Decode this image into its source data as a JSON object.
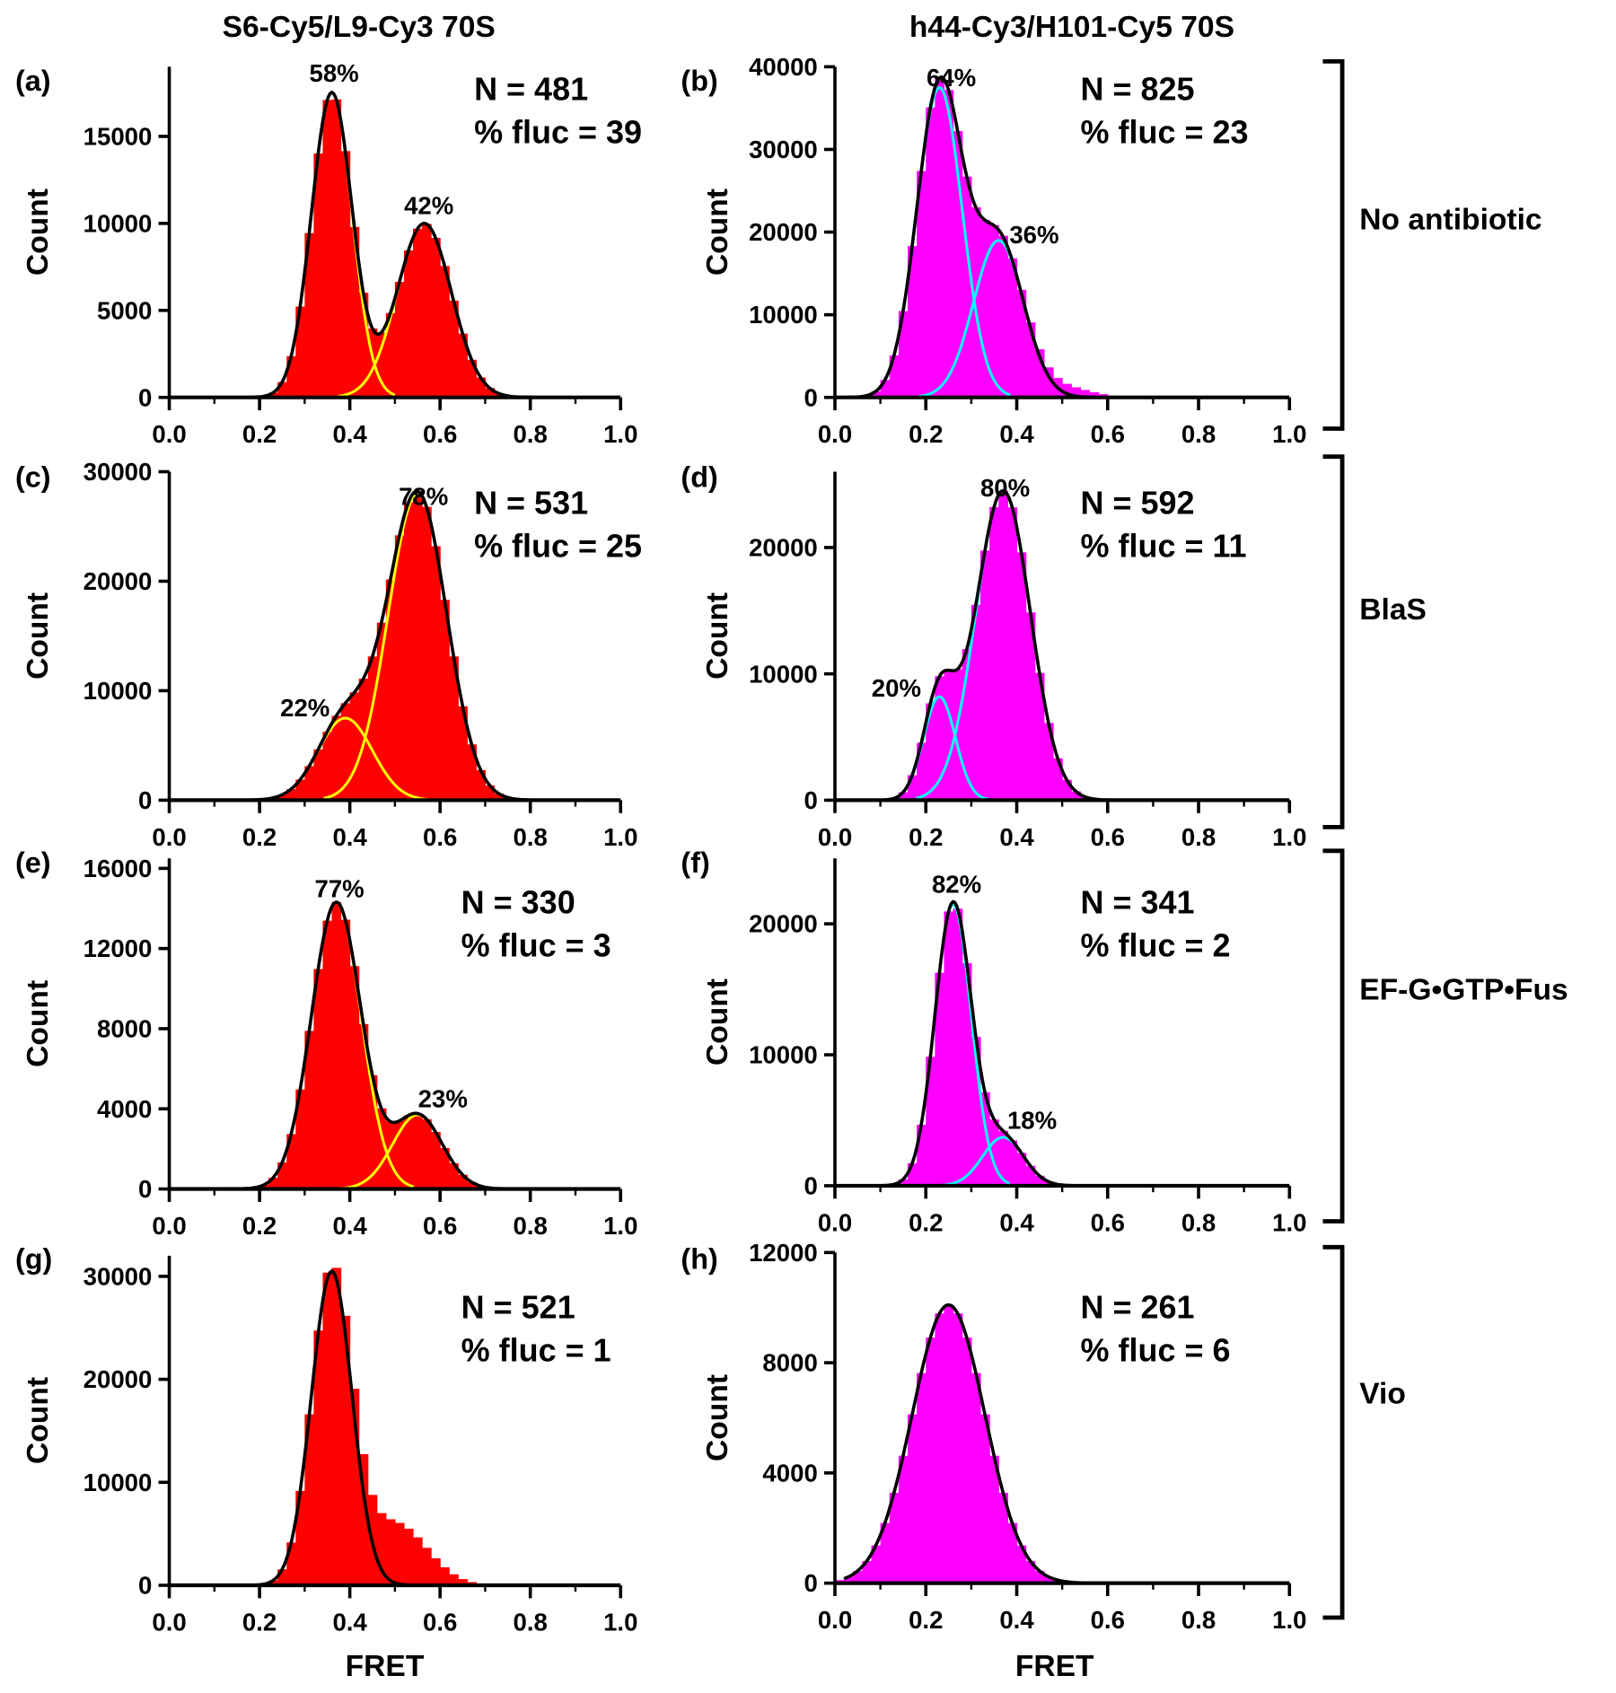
{
  "chart_data": {
    "type": "bar",
    "column_titles": [
      "S6-Cy5/L9-Cy3 70S",
      "h44-Cy3/H101-Cy5 70S"
    ],
    "row_labels": [
      "No antibiotic",
      "BlaS",
      "EF-G•GTP•Fus",
      "Vio"
    ],
    "xlabel": "FRET",
    "ylabel": "Count",
    "xlim": [
      0,
      1
    ],
    "xticks": [
      "0.0",
      "0.2",
      "0.4",
      "0.6",
      "0.8",
      "1.0"
    ],
    "colors": {
      "left_bars": "#ff0000",
      "right_bars": "#ff00ff",
      "left_components": "#ffff00",
      "right_components": "#00ffff",
      "fit": "#000000"
    },
    "panels": [
      {
        "id": "(a)",
        "N": "N = 481",
        "fluc": "% fluc = 39",
        "ylim": [
          0,
          19000
        ],
        "yticks": [
          0,
          5000,
          10000,
          15000
        ],
        "components": [
          {
            "center": 0.36,
            "amplitude": 17500,
            "sigma": 0.045,
            "label": "58%"
          },
          {
            "center": 0.565,
            "amplitude": 10000,
            "sigma": 0.06,
            "label": "42%"
          }
        ],
        "extra_histogram": []
      },
      {
        "id": "(b)",
        "N": "N = 825",
        "fluc": "% fluc = 23",
        "ylim": [
          0,
          40000
        ],
        "yticks": [
          0,
          10000,
          20000,
          30000,
          40000
        ],
        "components": [
          {
            "center": 0.23,
            "amplitude": 37500,
            "sigma": 0.05,
            "label": "64%"
          },
          {
            "center": 0.36,
            "amplitude": 19000,
            "sigma": 0.055,
            "label": "36%"
          }
        ],
        "extra_histogram": [
          {
            "center": 0.5,
            "amplitude": 1200,
            "sigma": 0.06
          }
        ]
      },
      {
        "id": "(c)",
        "N": "N = 531",
        "fluc": "% fluc = 25",
        "ylim": [
          0,
          30000
        ],
        "yticks": [
          0,
          10000,
          20000,
          30000
        ],
        "components": [
          {
            "center": 0.39,
            "amplitude": 7500,
            "sigma": 0.06,
            "label": "22%"
          },
          {
            "center": 0.55,
            "amplitude": 28000,
            "sigma": 0.065,
            "label": "78%"
          }
        ],
        "extra_histogram": []
      },
      {
        "id": "(d)",
        "N": "N = 592",
        "fluc": "% fluc = 11",
        "ylim": [
          0,
          26000
        ],
        "yticks": [
          0,
          10000,
          20000
        ],
        "components": [
          {
            "center": 0.23,
            "amplitude": 8200,
            "sigma": 0.035,
            "label": "20%"
          },
          {
            "center": 0.37,
            "amplitude": 24500,
            "sigma": 0.06,
            "label": "80%"
          }
        ],
        "extra_histogram": []
      },
      {
        "id": "(e)",
        "N": "N = 330",
        "fluc": "% fluc = 3",
        "ylim": [
          0,
          16500
        ],
        "yticks": [
          0,
          4000,
          8000,
          12000,
          16000
        ],
        "components": [
          {
            "center": 0.37,
            "amplitude": 14300,
            "sigma": 0.055,
            "label": "77%"
          },
          {
            "center": 0.55,
            "amplitude": 3700,
            "sigma": 0.055,
            "label": "23%"
          }
        ],
        "extra_histogram": []
      },
      {
        "id": "(f)",
        "N": "N = 341",
        "fluc": "% fluc = 2",
        "ylim": [
          0,
          25000
        ],
        "yticks": [
          0,
          10000,
          20000
        ],
        "components": [
          {
            "center": 0.26,
            "amplitude": 21500,
            "sigma": 0.04,
            "label": "82%"
          },
          {
            "center": 0.37,
            "amplitude": 3700,
            "sigma": 0.045,
            "label": "18%"
          }
        ],
        "extra_histogram": []
      },
      {
        "id": "(g)",
        "N": "N = 521",
        "fluc": "% fluc = 1",
        "ylim": [
          0,
          32000
        ],
        "yticks": [
          0,
          10000,
          20000,
          30000
        ],
        "components": [
          {
            "center": 0.36,
            "amplitude": 30500,
            "sigma": 0.045,
            "label": ""
          }
        ],
        "extra_histogram": [
          {
            "center": 0.5,
            "amplitude": 6000,
            "sigma": 0.07
          }
        ]
      },
      {
        "id": "(h)",
        "N": "N = 261",
        "fluc": "% fluc = 6",
        "ylim": [
          0,
          12000
        ],
        "yticks": [
          0,
          4000,
          8000,
          12000
        ],
        "components": [
          {
            "center": 0.25,
            "amplitude": 10100,
            "sigma": 0.08,
            "label": ""
          }
        ],
        "extra_histogram": []
      }
    ]
  }
}
